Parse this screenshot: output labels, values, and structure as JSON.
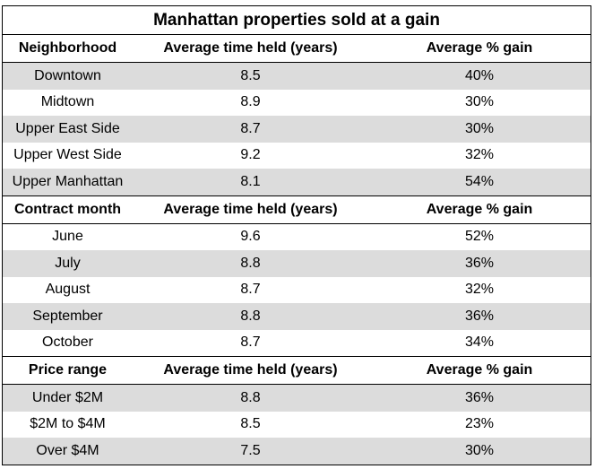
{
  "title": "Manhattan properties sold at a gain",
  "sections": [
    {
      "header": [
        "Neighborhood",
        "Average time held (years)",
        "Average % gain"
      ],
      "rows": [
        [
          "Downtown",
          "8.5",
          "40%"
        ],
        [
          "Midtown",
          "8.9",
          "30%"
        ],
        [
          "Upper East Side",
          "8.7",
          "30%"
        ],
        [
          "Upper West Side",
          "9.2",
          "32%"
        ],
        [
          "Upper Manhattan",
          "8.1",
          "54%"
        ]
      ]
    },
    {
      "header": [
        "Contract month",
        "Average time held (years)",
        "Average % gain"
      ],
      "rows": [
        [
          "June",
          "9.6",
          "52%"
        ],
        [
          "July",
          "8.8",
          "36%"
        ],
        [
          "August",
          "8.7",
          "32%"
        ],
        [
          "September",
          "8.8",
          "36%"
        ],
        [
          "October",
          "8.7",
          "34%"
        ]
      ]
    },
    {
      "header": [
        "Price range",
        "Average time held (years)",
        "Average % gain"
      ],
      "rows": [
        [
          "Under $2M",
          "8.8",
          "36%"
        ],
        [
          "$2M to $4M",
          "8.5",
          "23%"
        ],
        [
          "Over $4M",
          "7.5",
          "30%"
        ]
      ]
    }
  ]
}
